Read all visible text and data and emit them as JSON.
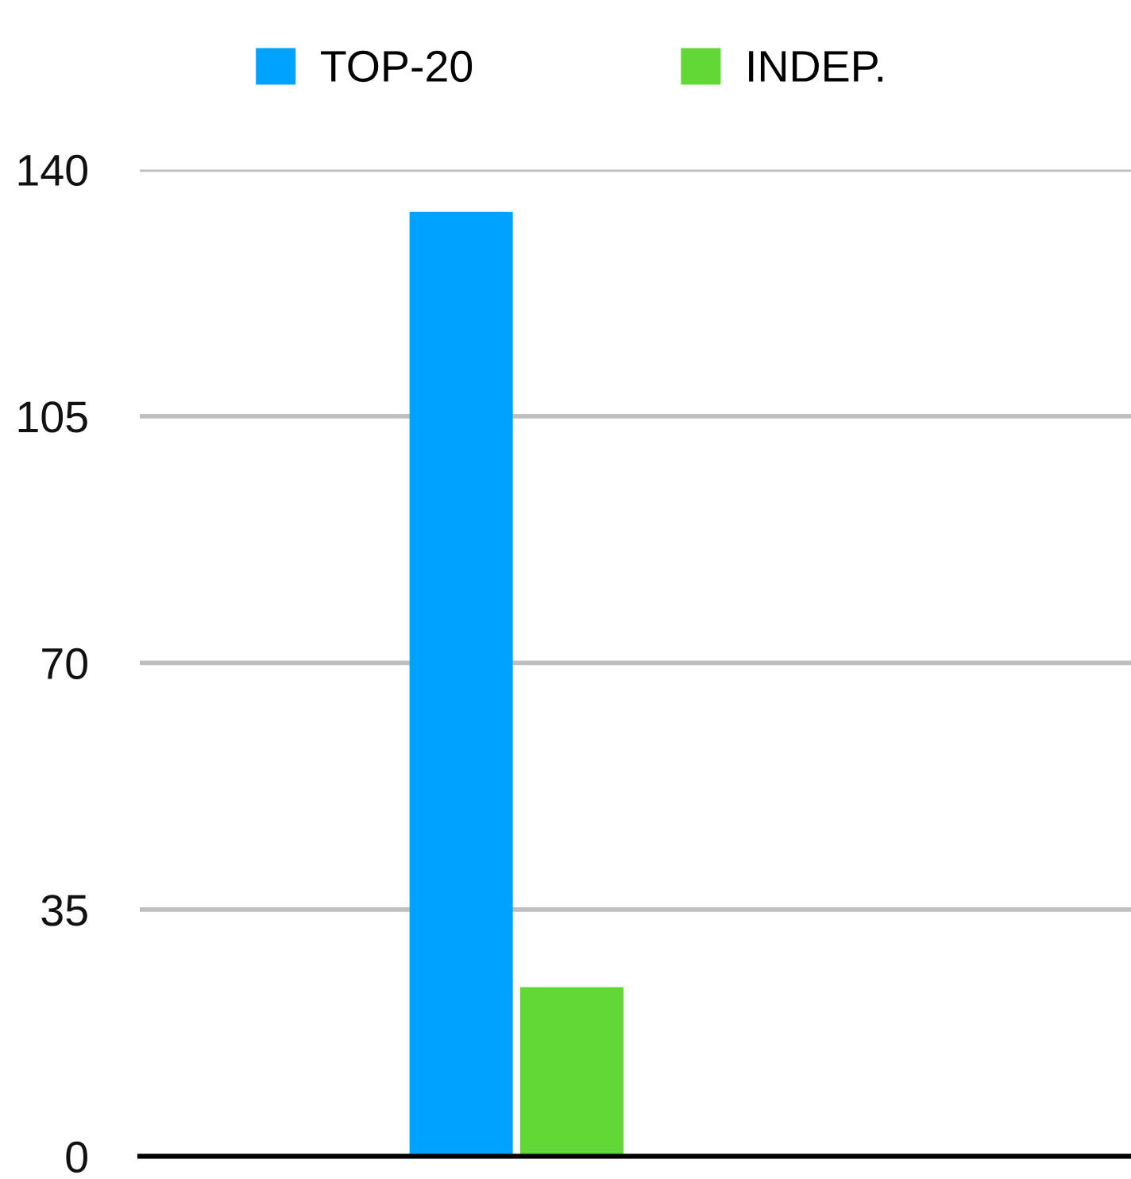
{
  "chart_data": {
    "type": "bar",
    "categories": [
      null
    ],
    "series": [
      {
        "name": "TOP-20",
        "color": "#00a2ff",
        "values": [
          134
        ]
      },
      {
        "name": "INDEP.",
        "color": "#61d836",
        "values": [
          24
        ]
      }
    ],
    "ylim": [
      0,
      140
    ],
    "yticks": [
      0,
      35,
      70,
      105,
      140
    ],
    "grid": "y",
    "legend": "top",
    "tick_labels": "y"
  }
}
